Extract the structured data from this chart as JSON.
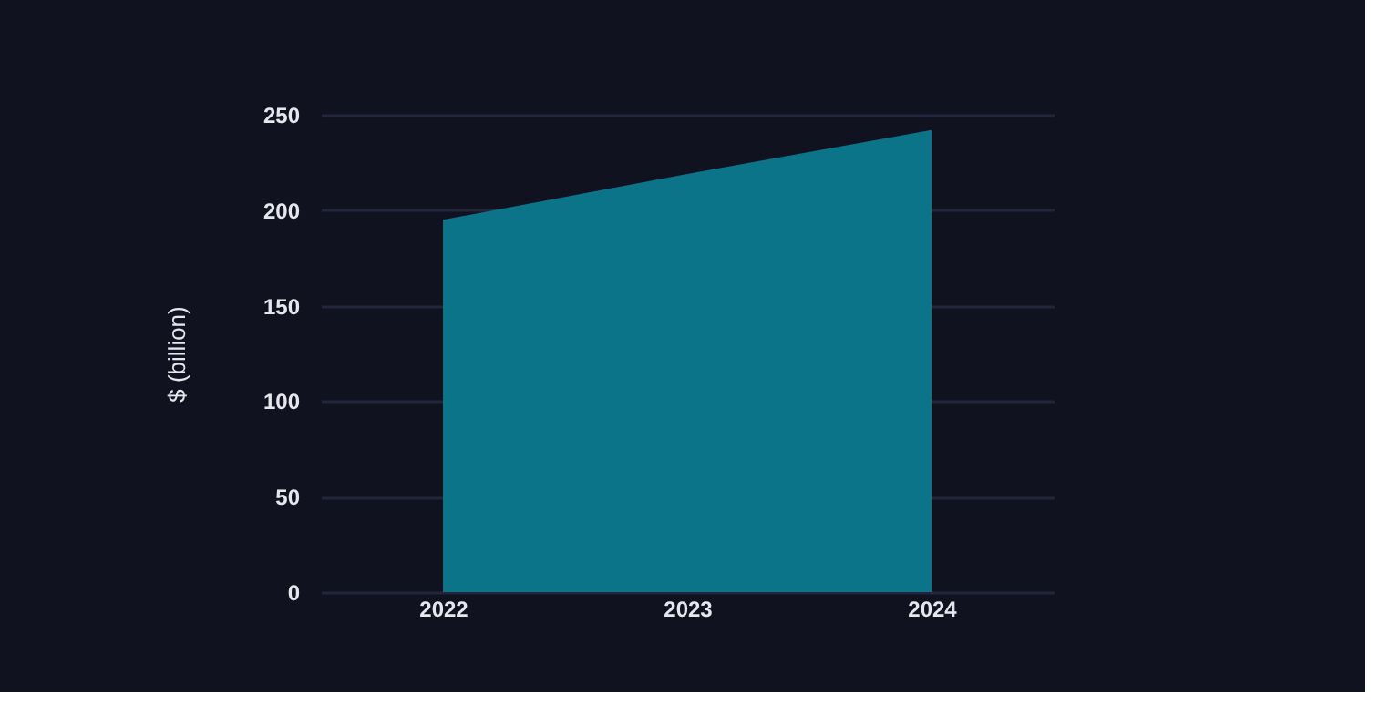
{
  "chart_data": {
    "type": "area",
    "categories": [
      "2022",
      "2023",
      "2024"
    ],
    "ylabel": "$ (billion)",
    "series": [
      {
        "color": "#0c7489",
        "values": [
          195,
          219,
          242
        ]
      }
    ],
    "ylim": [
      0,
      250
    ],
    "yticks": [
      0,
      50,
      100,
      150,
      200,
      250
    ],
    "grid": "y"
  }
}
